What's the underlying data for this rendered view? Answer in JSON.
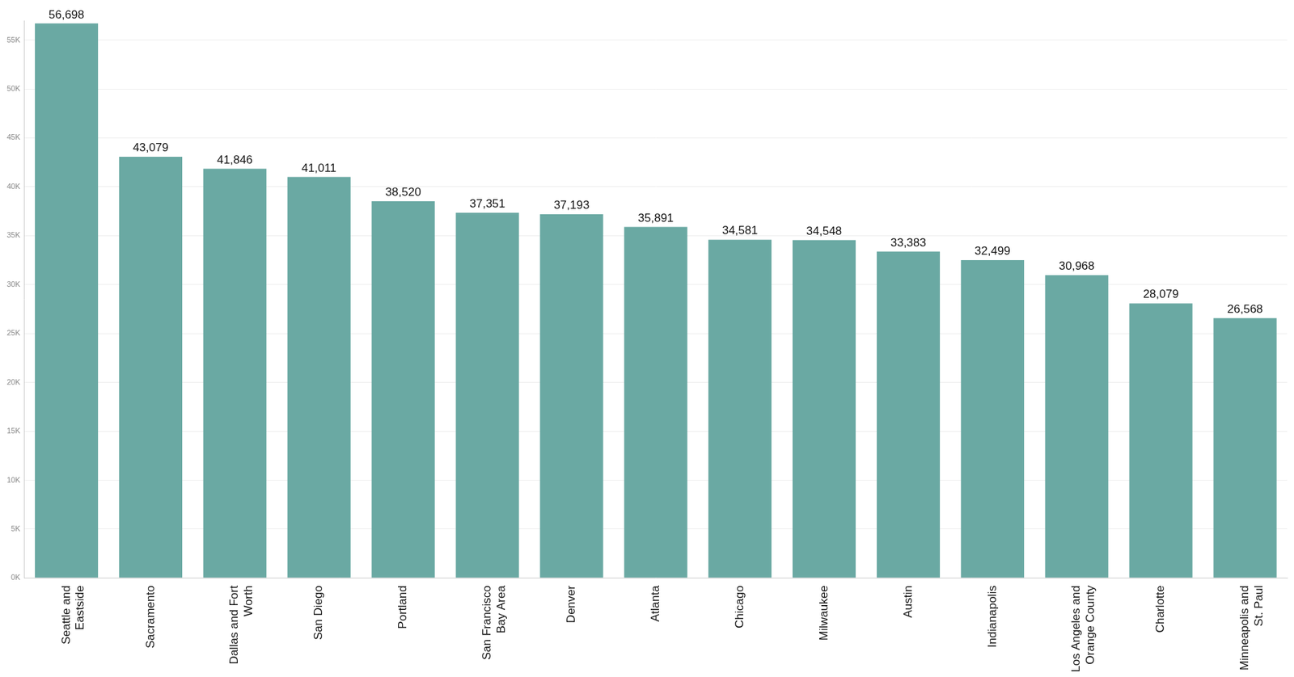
{
  "chart_data": {
    "type": "bar",
    "categories": [
      "Seattle and Eastside",
      "Sacramento",
      "Dallas and Fort Worth",
      "San Diego",
      "Portland",
      "San Francisco Bay Area",
      "Denver",
      "Atlanta",
      "Chicago",
      "Milwaukee",
      "Austin",
      "Indianapolis",
      "Los Angeles and Orange County",
      "Charlotte",
      "Minneapolis and St. Paul"
    ],
    "values": [
      56698,
      43079,
      41846,
      41011,
      38520,
      37351,
      37193,
      35891,
      34581,
      34548,
      33383,
      32499,
      30968,
      28079,
      26568
    ],
    "value_labels": [
      "56,698",
      "43,079",
      "41,846",
      "41,011",
      "38,520",
      "37,351",
      "37,193",
      "35,891",
      "34,581",
      "34,548",
      "33,383",
      "32,499",
      "30,968",
      "28,079",
      "26,568"
    ],
    "color": "#6aa9a3",
    "ylim": [
      0,
      57000
    ],
    "yticks": [
      {
        "value": 0,
        "label": "0K"
      },
      {
        "value": 5000,
        "label": "5K"
      },
      {
        "value": 10000,
        "label": "10K"
      },
      {
        "value": 15000,
        "label": "15K"
      },
      {
        "value": 20000,
        "label": "20K"
      },
      {
        "value": 25000,
        "label": "25K"
      },
      {
        "value": 30000,
        "label": "30K"
      },
      {
        "value": 35000,
        "label": "35K"
      },
      {
        "value": 40000,
        "label": "40K"
      },
      {
        "value": 45000,
        "label": "45K"
      },
      {
        "value": 50000,
        "label": "50K"
      },
      {
        "value": 55000,
        "label": "55K"
      }
    ],
    "grid": true,
    "data_labels": true
  }
}
